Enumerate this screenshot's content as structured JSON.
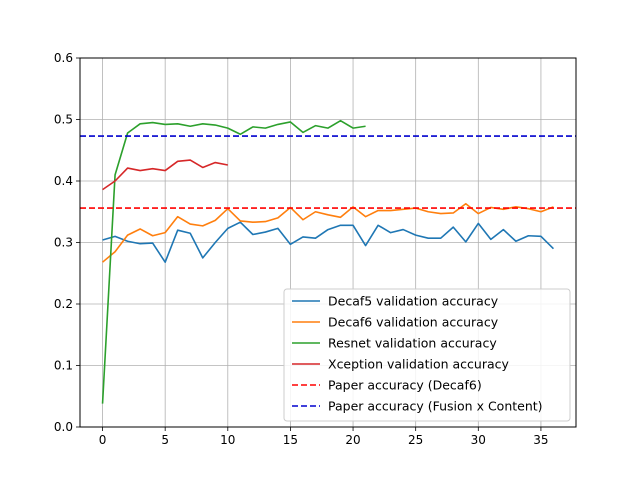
{
  "chart_data": {
    "type": "line",
    "title": "",
    "xlabel": "",
    "ylabel": "",
    "xlim": [
      -1.8,
      37.8
    ],
    "ylim": [
      0.0,
      0.6
    ],
    "xticks": [
      0,
      5,
      10,
      15,
      20,
      25,
      30,
      35
    ],
    "yticks": [
      0.0,
      0.1,
      0.2,
      0.3,
      0.4,
      0.5,
      0.6
    ],
    "xtick_labels": [
      "0",
      "5",
      "10",
      "15",
      "20",
      "25",
      "30",
      "35"
    ],
    "ytick_labels": [
      "0.0",
      "0.1",
      "0.2",
      "0.3",
      "0.4",
      "0.5",
      "0.6"
    ],
    "grid": true,
    "legend_position": "lower-right",
    "series": [
      {
        "name": "Decaf5 validation accuracy",
        "color": "#1f77b4",
        "style": "solid",
        "x": [
          0,
          1,
          2,
          3,
          4,
          5,
          6,
          7,
          8,
          9,
          10,
          11,
          12,
          13,
          14,
          15,
          16,
          17,
          18,
          19,
          20,
          21,
          22,
          23,
          24,
          25,
          26,
          27,
          28,
          29,
          30,
          31,
          32,
          33,
          34,
          35,
          36
        ],
        "values": [
          0.304,
          0.31,
          0.302,
          0.298,
          0.299,
          0.268,
          0.32,
          0.315,
          0.275,
          0.3,
          0.323,
          0.333,
          0.313,
          0.317,
          0.323,
          0.297,
          0.309,
          0.307,
          0.321,
          0.328,
          0.328,
          0.295,
          0.328,
          0.316,
          0.321,
          0.312,
          0.307,
          0.307,
          0.325,
          0.301,
          0.331,
          0.305,
          0.321,
          0.302,
          0.311,
          0.31,
          0.29
        ]
      },
      {
        "name": "Decaf6 validation accuracy",
        "color": "#ff7f0e",
        "style": "solid",
        "x": [
          0,
          1,
          2,
          3,
          4,
          5,
          6,
          7,
          8,
          9,
          10,
          11,
          12,
          13,
          14,
          15,
          16,
          17,
          18,
          19,
          20,
          21,
          22,
          23,
          24,
          25,
          26,
          27,
          28,
          29,
          30,
          31,
          32,
          33,
          34,
          35,
          36
        ],
        "values": [
          0.268,
          0.285,
          0.312,
          0.322,
          0.311,
          0.316,
          0.342,
          0.33,
          0.327,
          0.336,
          0.355,
          0.335,
          0.333,
          0.334,
          0.34,
          0.357,
          0.337,
          0.35,
          0.345,
          0.341,
          0.358,
          0.342,
          0.352,
          0.352,
          0.354,
          0.356,
          0.35,
          0.347,
          0.348,
          0.363,
          0.347,
          0.357,
          0.354,
          0.358,
          0.355,
          0.35,
          0.358
        ]
      },
      {
        "name": "Resnet validation accuracy",
        "color": "#2ca02c",
        "style": "solid",
        "x": [
          0,
          1,
          2,
          3,
          4,
          5,
          6,
          7,
          8,
          9,
          10,
          11,
          12,
          13,
          14,
          15,
          16,
          17,
          18,
          19,
          20,
          21
        ],
        "values": [
          0.038,
          0.41,
          0.478,
          0.493,
          0.495,
          0.492,
          0.493,
          0.489,
          0.493,
          0.491,
          0.486,
          0.476,
          0.488,
          0.486,
          0.492,
          0.496,
          0.479,
          0.49,
          0.486,
          0.498,
          0.486,
          0.489
        ]
      },
      {
        "name": "Xception validation accuracy",
        "color": "#d62728",
        "style": "solid",
        "x": [
          0,
          1,
          2,
          3,
          4,
          5,
          6,
          7,
          8,
          9,
          10
        ],
        "values": [
          0.386,
          0.4,
          0.421,
          0.417,
          0.42,
          0.417,
          0.432,
          0.434,
          0.422,
          0.43,
          0.426
        ]
      },
      {
        "name": "Paper accuracy (Decaf6)",
        "color": "#ff0000",
        "style": "dashed",
        "hline": 0.356
      },
      {
        "name": "Paper accuracy (Fusion x Content)",
        "color": "#0000cd",
        "style": "dashed",
        "hline": 0.473
      }
    ]
  }
}
